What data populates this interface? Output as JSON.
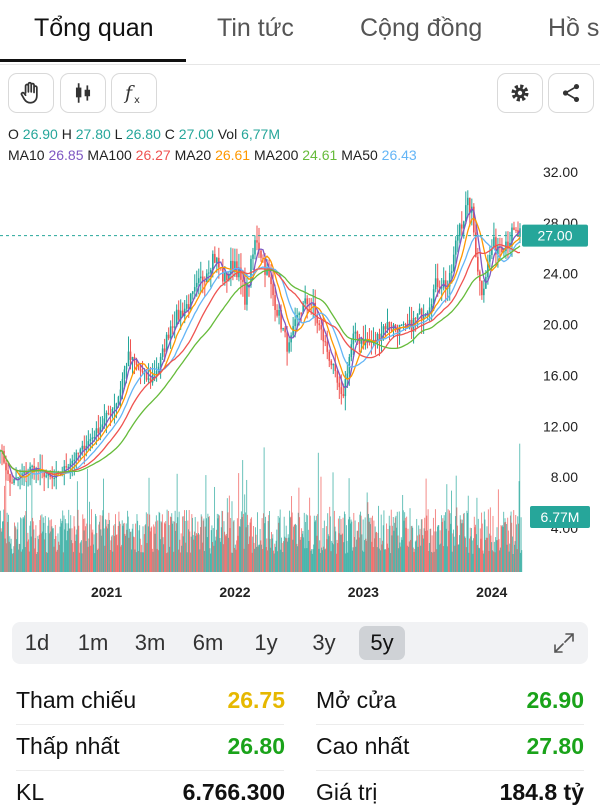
{
  "tabs": [
    {
      "label": "Tổng quan",
      "active": true
    },
    {
      "label": "Tin tức",
      "active": false
    },
    {
      "label": "Cộng đồng",
      "active": false
    },
    {
      "label": "Hồ s",
      "active": false
    }
  ],
  "toolbar": {
    "icons": [
      "hand-icon",
      "candlestick-icon",
      "function-icon",
      "gear-icon",
      "share-icon"
    ]
  },
  "ohlc": {
    "o_label": "O",
    "o_value": "26.90",
    "h_label": "H",
    "h_value": "27.80",
    "l_label": "L",
    "l_value": "26.80",
    "c_label": "C",
    "c_value": "27.00",
    "vol_label": "Vol",
    "vol_value": "6,77M"
  },
  "ma": {
    "ma10_label": "MA10",
    "ma10_value": "26.85",
    "ma100_label": "MA100",
    "ma100_value": "26.27",
    "ma20_label": "MA20",
    "ma20_value": "26.61",
    "ma200_label": "MA200",
    "ma200_value": "24.61",
    "ma50_label": "MA50",
    "ma50_value": "26.43"
  },
  "colors": {
    "up": "#23a69a",
    "down": "#ef5350",
    "price_tag": "#26a69a",
    "ma10": "#7e57c2",
    "ma20": "#ff9800",
    "ma50": "#64b5f6",
    "ma100": "#ef5350",
    "ma200": "#66bb3a",
    "ohlc_value": "#26a69a",
    "ref": "#e6b800",
    "green": "#1aa31a"
  },
  "chart_data": {
    "type": "candlestick",
    "y_ticks": [
      "32.00",
      "28.00",
      "24.00",
      "20.00",
      "16.00",
      "12.00",
      "8.00",
      "4.00"
    ],
    "ylim": [
      0,
      32
    ],
    "x_ticks": [
      "2021",
      "2022",
      "2023",
      "2024"
    ],
    "last_price_label": "27.00",
    "last_volume_label": "6.77M",
    "price_path": [
      [
        "2020-03",
        10.5
      ],
      [
        "2020-04",
        7.5
      ],
      [
        "2020-06",
        8.8
      ],
      [
        "2020-08",
        7.8
      ],
      [
        "2020-10",
        9.5
      ],
      [
        "2020-12",
        11.5
      ],
      [
        "2021-02",
        14
      ],
      [
        "2021-03",
        17.5
      ],
      [
        "2021-05",
        15.5
      ],
      [
        "2021-06",
        17
      ],
      [
        "2021-07",
        20
      ],
      [
        "2021-09",
        22
      ],
      [
        "2021-11",
        25.5
      ],
      [
        "2021-12",
        23.5
      ],
      [
        "2022-01",
        25
      ],
      [
        "2022-02",
        22
      ],
      [
        "2022-03",
        27
      ],
      [
        "2022-04",
        24
      ],
      [
        "2022-06",
        18
      ],
      [
        "2022-07",
        21
      ],
      [
        "2022-08",
        22
      ],
      [
        "2022-10",
        17
      ],
      [
        "2022-11",
        14
      ],
      [
        "2022-12",
        19
      ],
      [
        "2023-02",
        18.5
      ],
      [
        "2023-03",
        20
      ],
      [
        "2023-05",
        19.5
      ],
      [
        "2023-07",
        21.5
      ],
      [
        "2023-08",
        23.5
      ],
      [
        "2023-09",
        23
      ],
      [
        "2023-10",
        28
      ],
      [
        "2023-11",
        29.5
      ],
      [
        "2023-12",
        22.5
      ],
      [
        "2024-01",
        26
      ],
      [
        "2024-03",
        27
      ]
    ]
  },
  "ranges": [
    {
      "label": "1d",
      "active": false
    },
    {
      "label": "1m",
      "active": false
    },
    {
      "label": "3m",
      "active": false
    },
    {
      "label": "6m",
      "active": false
    },
    {
      "label": "1y",
      "active": false
    },
    {
      "label": "3y",
      "active": false
    },
    {
      "label": "5y",
      "active": true
    }
  ],
  "stats": {
    "ref_label": "Tham chiếu",
    "ref_value": "26.75",
    "open_label": "Mở cửa",
    "open_value": "26.90",
    "low_label": "Thấp nhất",
    "low_value": "26.80",
    "high_label": "Cao nhất",
    "high_value": "27.80",
    "vol_label": "KL",
    "vol_value": "6.766.300",
    "val_label": "Giá trị",
    "val_value": "184.8 tỷ"
  }
}
